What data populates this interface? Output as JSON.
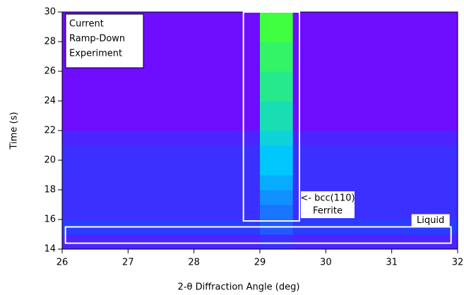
{
  "chart_data": {
    "type": "heatmap",
    "xlabel": "2-θ Diffraction Angle (deg)",
    "ylabel": "Time (s)",
    "xbins": [
      26,
      26.5,
      27,
      27.5,
      28,
      28.5,
      29,
      29.5,
      30,
      30.5,
      31,
      31.5,
      32
    ],
    "ybins": [
      14,
      15,
      16,
      17,
      18,
      19,
      20,
      21,
      22,
      23,
      24,
      25,
      26,
      27,
      28,
      29,
      30
    ],
    "z": [
      [
        0.15,
        0.15,
        0.15,
        0.15,
        0.15,
        0.15,
        0.2,
        0.15,
        0.15,
        0.15,
        0.15,
        0.15
      ],
      [
        0.25,
        0.25,
        0.25,
        0.25,
        0.25,
        0.25,
        0.3,
        0.25,
        0.25,
        0.25,
        0.25,
        0.25
      ],
      [
        0.2,
        0.2,
        0.2,
        0.2,
        0.2,
        0.2,
        0.35,
        0.2,
        0.2,
        0.2,
        0.2,
        0.2
      ],
      [
        0.2,
        0.2,
        0.2,
        0.2,
        0.2,
        0.2,
        0.4,
        0.2,
        0.2,
        0.2,
        0.2,
        0.2
      ],
      [
        0.2,
        0.2,
        0.2,
        0.2,
        0.2,
        0.2,
        0.45,
        0.2,
        0.2,
        0.2,
        0.2,
        0.2
      ],
      [
        0.2,
        0.2,
        0.2,
        0.2,
        0.2,
        0.2,
        0.5,
        0.2,
        0.2,
        0.2,
        0.2,
        0.2
      ],
      [
        0.2,
        0.2,
        0.2,
        0.2,
        0.2,
        0.2,
        0.5,
        0.2,
        0.2,
        0.2,
        0.2,
        0.2
      ],
      [
        0.15,
        0.15,
        0.15,
        0.15,
        0.15,
        0.15,
        0.55,
        0.15,
        0.15,
        0.15,
        0.15,
        0.15
      ],
      [
        0.05,
        0.05,
        0.05,
        0.05,
        0.05,
        0.05,
        0.6,
        0.05,
        0.05,
        0.05,
        0.05,
        0.05
      ],
      [
        0.05,
        0.05,
        0.05,
        0.05,
        0.05,
        0.05,
        0.6,
        0.05,
        0.05,
        0.05,
        0.05,
        0.05
      ],
      [
        0.05,
        0.05,
        0.05,
        0.05,
        0.05,
        0.05,
        0.65,
        0.05,
        0.05,
        0.05,
        0.05,
        0.05
      ],
      [
        0.05,
        0.05,
        0.05,
        0.05,
        0.05,
        0.05,
        0.65,
        0.05,
        0.05,
        0.05,
        0.05,
        0.05
      ],
      [
        0.05,
        0.05,
        0.05,
        0.05,
        0.05,
        0.05,
        0.7,
        0.05,
        0.05,
        0.05,
        0.05,
        0.05
      ],
      [
        0.05,
        0.05,
        0.05,
        0.05,
        0.05,
        0.05,
        0.7,
        0.05,
        0.05,
        0.05,
        0.05,
        0.05
      ],
      [
        0.05,
        0.05,
        0.05,
        0.05,
        0.05,
        0.05,
        0.75,
        0.05,
        0.05,
        0.05,
        0.05,
        0.05
      ],
      [
        0.05,
        0.05,
        0.05,
        0.05,
        0.05,
        0.05,
        0.75,
        0.05,
        0.05,
        0.05,
        0.05,
        0.05
      ]
    ],
    "zlim": [
      0,
      1
    ],
    "colormap": [
      "#7f00ff",
      "#2a3cff",
      "#00c8ff",
      "#40ff40",
      "#ffff00"
    ],
    "xlim": [
      26,
      32
    ],
    "ylim": [
      14,
      30
    ],
    "xticks": [
      26,
      27,
      28,
      29,
      30,
      31,
      32
    ],
    "yticks": [
      14,
      16,
      18,
      20,
      22,
      24,
      26,
      28,
      30
    ],
    "annotation": [
      "Current",
      "Ramp-Down",
      "Experiment"
    ],
    "regions": [
      {
        "x": [
          28.75,
          29.6
        ],
        "y": [
          15.9,
          30
        ],
        "label": [
          "<- bcc(110)",
          "Ferrite"
        ]
      },
      {
        "x": [
          26.05,
          31.9
        ],
        "y": [
          14.4,
          15.5
        ],
        "label": [
          "Liquid"
        ]
      }
    ]
  }
}
